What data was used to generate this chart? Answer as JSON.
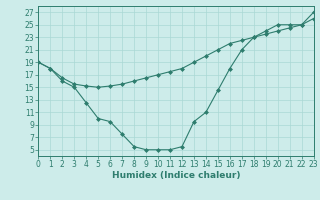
{
  "line1_x": [
    0,
    1,
    2,
    3,
    4,
    5,
    6,
    7,
    8,
    9,
    10,
    11,
    12,
    13,
    14,
    15,
    16,
    17,
    18,
    19,
    20,
    21,
    22,
    23
  ],
  "line1_y": [
    19,
    18,
    16,
    15,
    12.5,
    10,
    9.5,
    7.5,
    5.5,
    5,
    5,
    5,
    5.5,
    9.5,
    11,
    14.5,
    18,
    21,
    23,
    24,
    25,
    25,
    25,
    27
  ],
  "line2_x": [
    0,
    1,
    2,
    3,
    4,
    5,
    6,
    7,
    8,
    9,
    10,
    11,
    12,
    13,
    14,
    15,
    16,
    17,
    18,
    19,
    20,
    21,
    22,
    23
  ],
  "line2_y": [
    19,
    18,
    16.5,
    15.5,
    15.2,
    15.0,
    15.2,
    15.5,
    16.0,
    16.5,
    17.0,
    17.5,
    18.0,
    19.0,
    20.0,
    21.0,
    22.0,
    22.5,
    23.0,
    23.5,
    24.0,
    24.5,
    25.0,
    26.0
  ],
  "color": "#2e7d6e",
  "bg_color": "#cdecea",
  "grid_color": "#aad8d5",
  "xlabel": "Humidex (Indice chaleur)",
  "xlim": [
    0,
    23
  ],
  "ylim": [
    4,
    28
  ],
  "xticks": [
    0,
    1,
    2,
    3,
    4,
    5,
    6,
    7,
    8,
    9,
    10,
    11,
    12,
    13,
    14,
    15,
    16,
    17,
    18,
    19,
    20,
    21,
    22,
    23
  ],
  "yticks": [
    5,
    7,
    9,
    11,
    13,
    15,
    17,
    19,
    21,
    23,
    25,
    27
  ],
  "xlabel_fontsize": 6.5,
  "tick_fontsize": 5.5,
  "marker": "D",
  "markersize": 2.0,
  "linewidth": 0.8
}
